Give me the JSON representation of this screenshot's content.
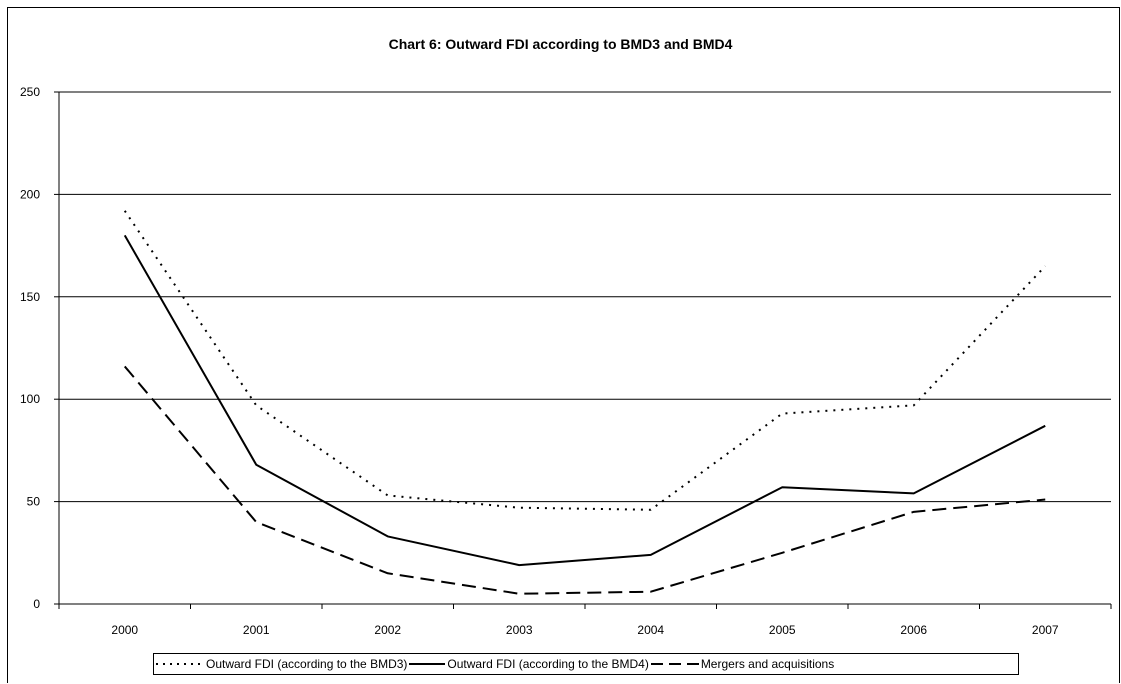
{
  "chart_data": {
    "type": "line",
    "title": "Chart 6: Outward FDI according to BMD3 and BMD4",
    "categories": [
      "2000",
      "2001",
      "2002",
      "2003",
      "2004",
      "2005",
      "2006",
      "2007"
    ],
    "ylim": [
      0,
      250
    ],
    "yticks": [
      0,
      50,
      100,
      150,
      200,
      250
    ],
    "grid": true,
    "legend_position": "bottom",
    "series": [
      {
        "name": "Outward FDI (according to the BMD3)",
        "dash": "dotted",
        "color": "#000000",
        "values": [
          192,
          97,
          53,
          47,
          46,
          93,
          97,
          165
        ]
      },
      {
        "name": "Outward FDI (according to the BMD4)",
        "dash": "solid",
        "color": "#000000",
        "values": [
          180,
          68,
          33,
          19,
          24,
          57,
          54,
          87
        ]
      },
      {
        "name": "Mergers and acquisitions",
        "dash": "dashed",
        "color": "#000000",
        "values": [
          116,
          40,
          15,
          5,
          6,
          25,
          45,
          51
        ]
      }
    ]
  }
}
